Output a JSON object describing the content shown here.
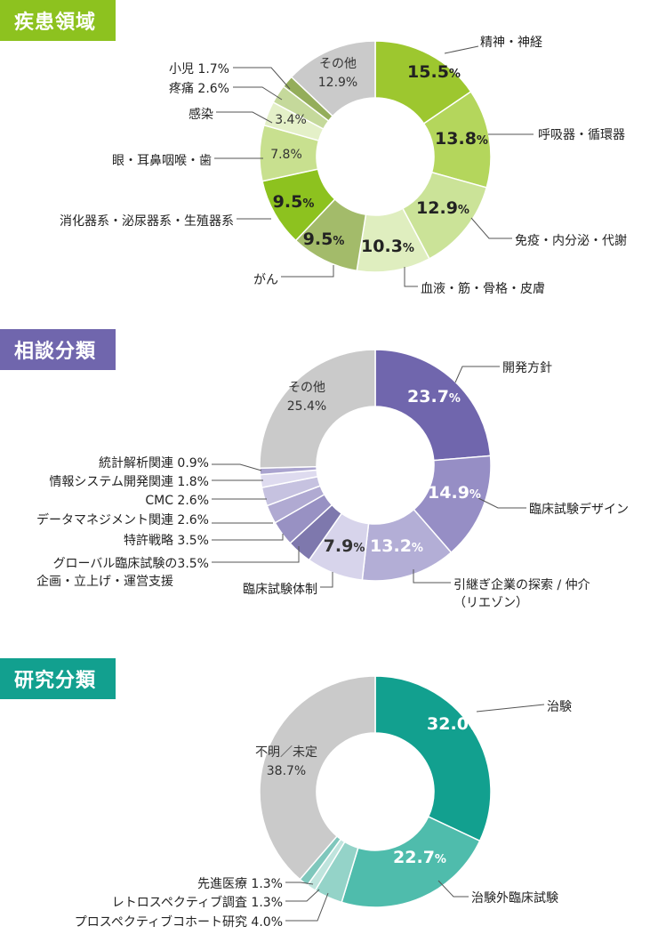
{
  "sections": [
    {
      "title": "疾患領域",
      "color": "#8dc21f"
    },
    {
      "title": "相談分類",
      "color": "#7066ad"
    },
    {
      "title": "研究分類",
      "color": "#12a08f"
    }
  ],
  "chart_data": [
    {
      "type": "pie",
      "title": "疾患領域",
      "slices": [
        {
          "label": "精神・神経",
          "value": 15.5,
          "color": "#9dc72f"
        },
        {
          "label": "呼吸器・循環器",
          "value": 13.8,
          "color": "#b4d65c"
        },
        {
          "label": "免疫・内分泌・代謝",
          "value": 12.9,
          "color": "#cbe398"
        },
        {
          "label": "血液・筋・骨格・皮膚",
          "value": 10.3,
          "color": "#dfeebf"
        },
        {
          "label": "がん",
          "value": 9.5,
          "color": "#a3bb6a"
        },
        {
          "label": "消化器系・泌尿器系・生殖器系",
          "value": 9.5,
          "color": "#8dc21f"
        },
        {
          "label": "眼・耳鼻咽喉・歯",
          "value": 7.8,
          "color": "#c8e08f"
        },
        {
          "label": "感染",
          "value": 3.4,
          "color": "#e4f0c8"
        },
        {
          "label": "疼痛",
          "value": 2.6,
          "color": "#c5d99b"
        },
        {
          "label": "小児",
          "value": 1.7,
          "color": "#94ad5a"
        },
        {
          "label": "その他",
          "value": 12.9,
          "color": "#cacaca"
        }
      ]
    },
    {
      "type": "pie",
      "title": "相談分類",
      "slices": [
        {
          "label": "開発方針",
          "value": 23.7,
          "color": "#7066ad"
        },
        {
          "label": "臨床試験デザイン",
          "value": 14.9,
          "color": "#968ec5"
        },
        {
          "label": "引継ぎ企業の探索 / 仲介",
          "label2": "（リエゾン）",
          "value": 13.2,
          "color": "#b3aed6"
        },
        {
          "label": "臨床試験体制",
          "value": 7.9,
          "color": "#d7d4eb"
        },
        {
          "label": "グローバル臨床試験の",
          "label2": "企画・立上げ・運営支援",
          "value": 3.5,
          "color": "#7e78ad"
        },
        {
          "label": "特許戦略",
          "value": 3.5,
          "color": "#9891c3"
        },
        {
          "label": "データマネジメント関連",
          "value": 2.6,
          "color": "#b0aad2"
        },
        {
          "label": "CMC",
          "value": 2.6,
          "color": "#c6c2e0"
        },
        {
          "label": "情報システム開発関連",
          "value": 1.8,
          "color": "#dedbef"
        },
        {
          "label": "統計解析関連",
          "value": 0.9,
          "color": "#aaa4cf"
        },
        {
          "label": "その他",
          "value": 25.4,
          "color": "#cacaca"
        }
      ]
    },
    {
      "type": "pie",
      "title": "研究分類",
      "slices": [
        {
          "label": "治験",
          "value": 32.0,
          "color": "#12a08f"
        },
        {
          "label": "治験外臨床試験",
          "value": 22.7,
          "color": "#4fbcac"
        },
        {
          "label": "プロスペクティブコホート研究",
          "value": 4.0,
          "color": "#94d3c8"
        },
        {
          "label": "レトロスペクティブ調査",
          "value": 1.3,
          "color": "#bfe4dd"
        },
        {
          "label": "先進医療",
          "value": 1.3,
          "color": "#7fc7bc"
        },
        {
          "label": "不明／未定",
          "value": 38.7,
          "color": "#cacaca"
        }
      ]
    }
  ]
}
